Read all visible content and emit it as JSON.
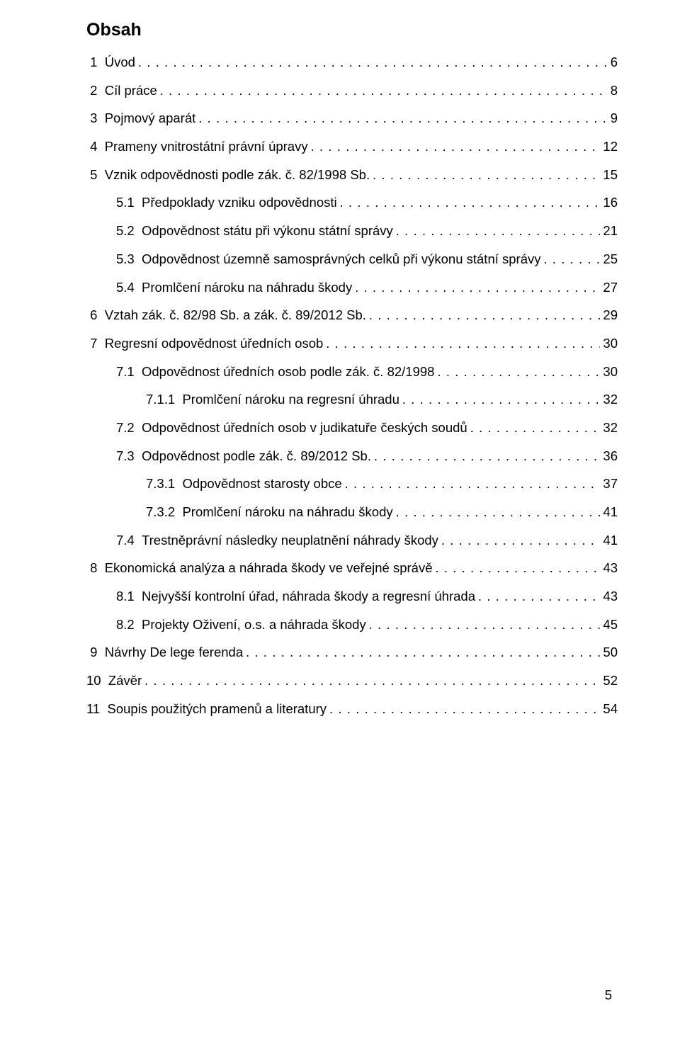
{
  "title": "Obsah",
  "font_family": "Arial, Helvetica, sans-serif",
  "background_color": "#ffffff",
  "text_color": "#000000",
  "title_fontsize": 25,
  "body_fontsize": 18.5,
  "page_number": "5",
  "entries": [
    {
      "indent": 0,
      "num": " 1",
      "label": "Úvod",
      "page": "6"
    },
    {
      "indent": 0,
      "num": " 2",
      "label": "Cíl práce",
      "page": "8"
    },
    {
      "indent": 0,
      "num": " 3",
      "label": "Pojmový aparát",
      "page": "9"
    },
    {
      "indent": 0,
      "num": " 4",
      "label": "Prameny vnitrostátní právní úpravy",
      "page": "12"
    },
    {
      "indent": 0,
      "num": " 5",
      "label": "Vznik odpovědnosti podle zák. č. 82/1998 Sb.",
      "page": "15"
    },
    {
      "indent": 1,
      "num": "5.1",
      "label": "Předpoklady vzniku odpovědnosti",
      "page": "16"
    },
    {
      "indent": 1,
      "num": "5.2",
      "label": "Odpovědnost státu při výkonu státní správy",
      "page": "21"
    },
    {
      "indent": 1,
      "num": "5.3",
      "label": "Odpovědnost územně samosprávných celků při výkonu státní správy",
      "page": "25"
    },
    {
      "indent": 1,
      "num": "5.4",
      "label": "Promlčení nároku na náhradu škody",
      "page": "27"
    },
    {
      "indent": 0,
      "num": " 6",
      "label": "Vztah zák. č. 82/98 Sb. a zák. č. 89/2012 Sb.",
      "page": "29"
    },
    {
      "indent": 0,
      "num": " 7",
      "label": "Regresní odpovědnost úředních osob",
      "page": "30"
    },
    {
      "indent": 1,
      "num": "7.1",
      "label": "Odpovědnost úředních osob podle zák. č. 82/1998",
      "page": "30"
    },
    {
      "indent": 2,
      "num": "7.1.1",
      "label": "Promlčení nároku na regresní úhradu",
      "page": "32"
    },
    {
      "indent": 1,
      "num": "7.2",
      "label": "Odpovědnost úředních osob v judikatuře českých soudů",
      "page": "32"
    },
    {
      "indent": 1,
      "num": "7.3",
      "label": "Odpovědnost podle zák. č. 89/2012 Sb.",
      "page": "36"
    },
    {
      "indent": 2,
      "num": "7.3.1",
      "label": "Odpovědnost starosty obce",
      "page": "37"
    },
    {
      "indent": 2,
      "num": "7.3.2",
      "label": "Promlčení nároku na náhradu škody",
      "page": "41"
    },
    {
      "indent": 1,
      "num": "7.4",
      "label": "Trestněprávní následky neuplatnění náhrady škody",
      "page": "41"
    },
    {
      "indent": 0,
      "num": " 8",
      "label": "Ekonomická analýza a náhrada škody ve veřejné správě",
      "page": "43"
    },
    {
      "indent": 1,
      "num": "8.1",
      "label": "Nejvyšší kontrolní úřad, náhrada škody a regresní úhrada",
      "page": "43"
    },
    {
      "indent": 1,
      "num": "8.2",
      "label": "Projekty Oživení, o.s. a náhrada škody",
      "page": "45"
    },
    {
      "indent": 0,
      "num": " 9",
      "label": "Návrhy De lege ferenda",
      "page": "50"
    },
    {
      "indent": 0,
      "num": "10",
      "label": "Závěr",
      "page": "52"
    },
    {
      "indent": 0,
      "num": "11",
      "label": "Soupis použitých pramenů a literatury",
      "page": "54"
    }
  ]
}
